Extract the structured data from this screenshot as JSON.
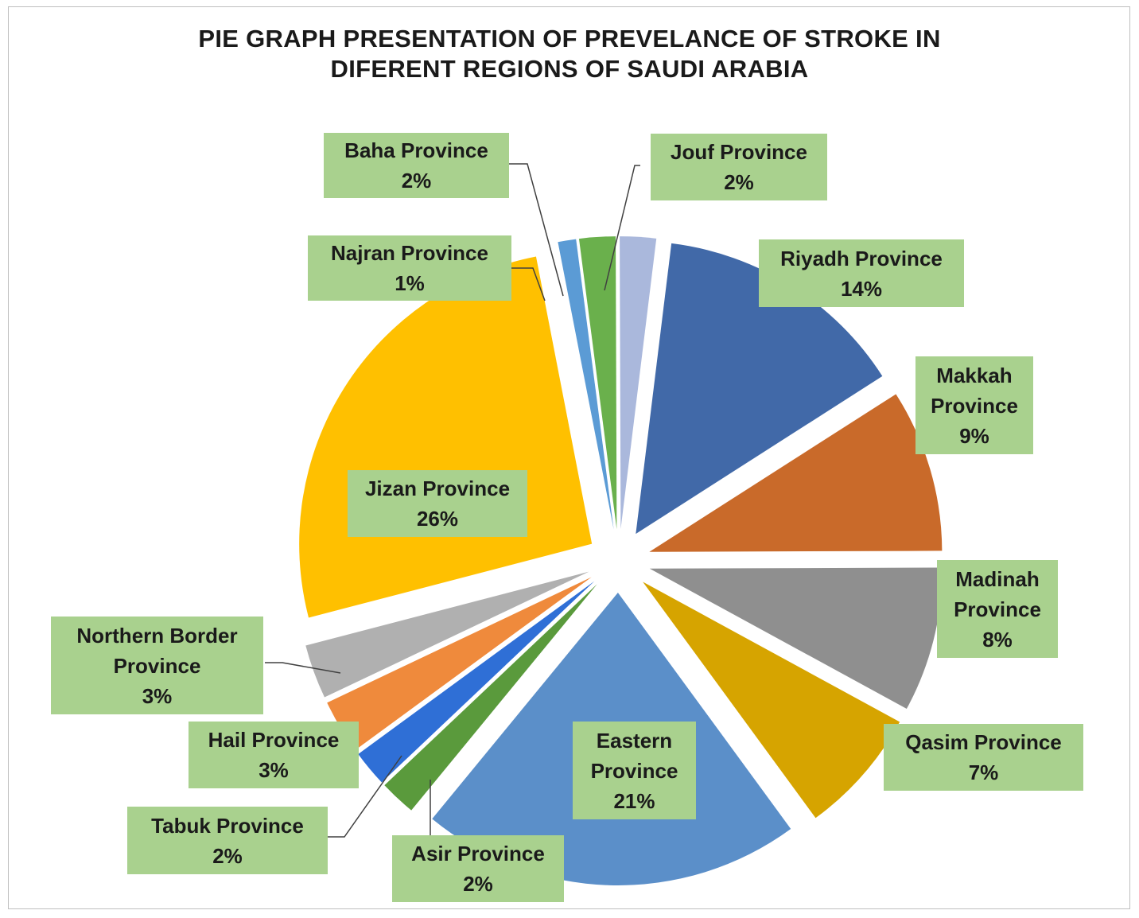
{
  "title_line1": "PIE GRAPH PRESENTATION OF PREVELANCE OF STROKE IN",
  "title_line2": "DIFERENT REGIONS OF SAUDI ARABIA",
  "chart_data": {
    "type": "pie",
    "title": "PIE GRAPH PRESENTATION OF PREVELANCE OF STROKE IN DIFERENT REGIONS OF SAUDI ARABIA",
    "slices": [
      {
        "category": "Riyadh Province",
        "value": 14,
        "display": "14%",
        "color": "#4169a8"
      },
      {
        "category": "Makkah Province",
        "value": 9,
        "display": "9%",
        "color": "#c96a2a"
      },
      {
        "category": "Madinah Province",
        "value": 8,
        "display": "8%",
        "color": "#8f8f8f"
      },
      {
        "category": "Qasim Province",
        "value": 7,
        "display": "7%",
        "color": "#d6a400"
      },
      {
        "category": "Eastern Province",
        "value": 21,
        "display": "21%",
        "color": "#5b8fc9"
      },
      {
        "category": "Asir Province",
        "value": 2,
        "display": "2%",
        "color": "#5a9a3c"
      },
      {
        "category": "Tabuk Province",
        "value": 2,
        "display": "2%",
        "color": "#2f6fd6"
      },
      {
        "category": "Hail Province",
        "value": 3,
        "display": "3%",
        "color": "#ef8a3c"
      },
      {
        "category": "Northern Border Province",
        "value": 3,
        "display": "3%",
        "color": "#b0b0b0"
      },
      {
        "category": "Jizan Province",
        "value": 26,
        "display": "26%",
        "color": "#ffc000"
      },
      {
        "category": "Najran Province",
        "value": 1,
        "display": "1%",
        "color": "#5b9bd5"
      },
      {
        "category": "Baha Province",
        "value": 2,
        "display": "2%",
        "color": "#6ab04c"
      },
      {
        "category": "Jouf Province",
        "value": 2,
        "display": "2%",
        "color": "#aab8dc"
      }
    ],
    "label_fill": "#a9d18e",
    "legend": "none"
  }
}
